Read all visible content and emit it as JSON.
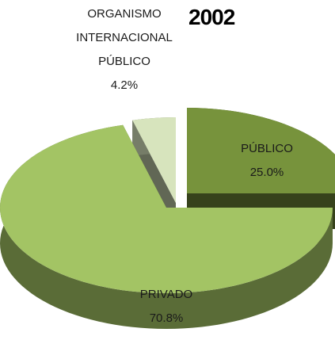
{
  "chart_data": {
    "type": "pie",
    "title": "2002",
    "categories": [
      "PÚBLICO",
      "PRIVADO",
      "ORGANISMO INTERNACIONAL PÚBLICO"
    ],
    "values": [
      25.0,
      70.8,
      4.2
    ],
    "value_labels": [
      "25.0%",
      "70.8%",
      "4.2%"
    ],
    "colors": [
      "#77933c",
      "#a3c464",
      "#d7e4bd"
    ]
  }
}
